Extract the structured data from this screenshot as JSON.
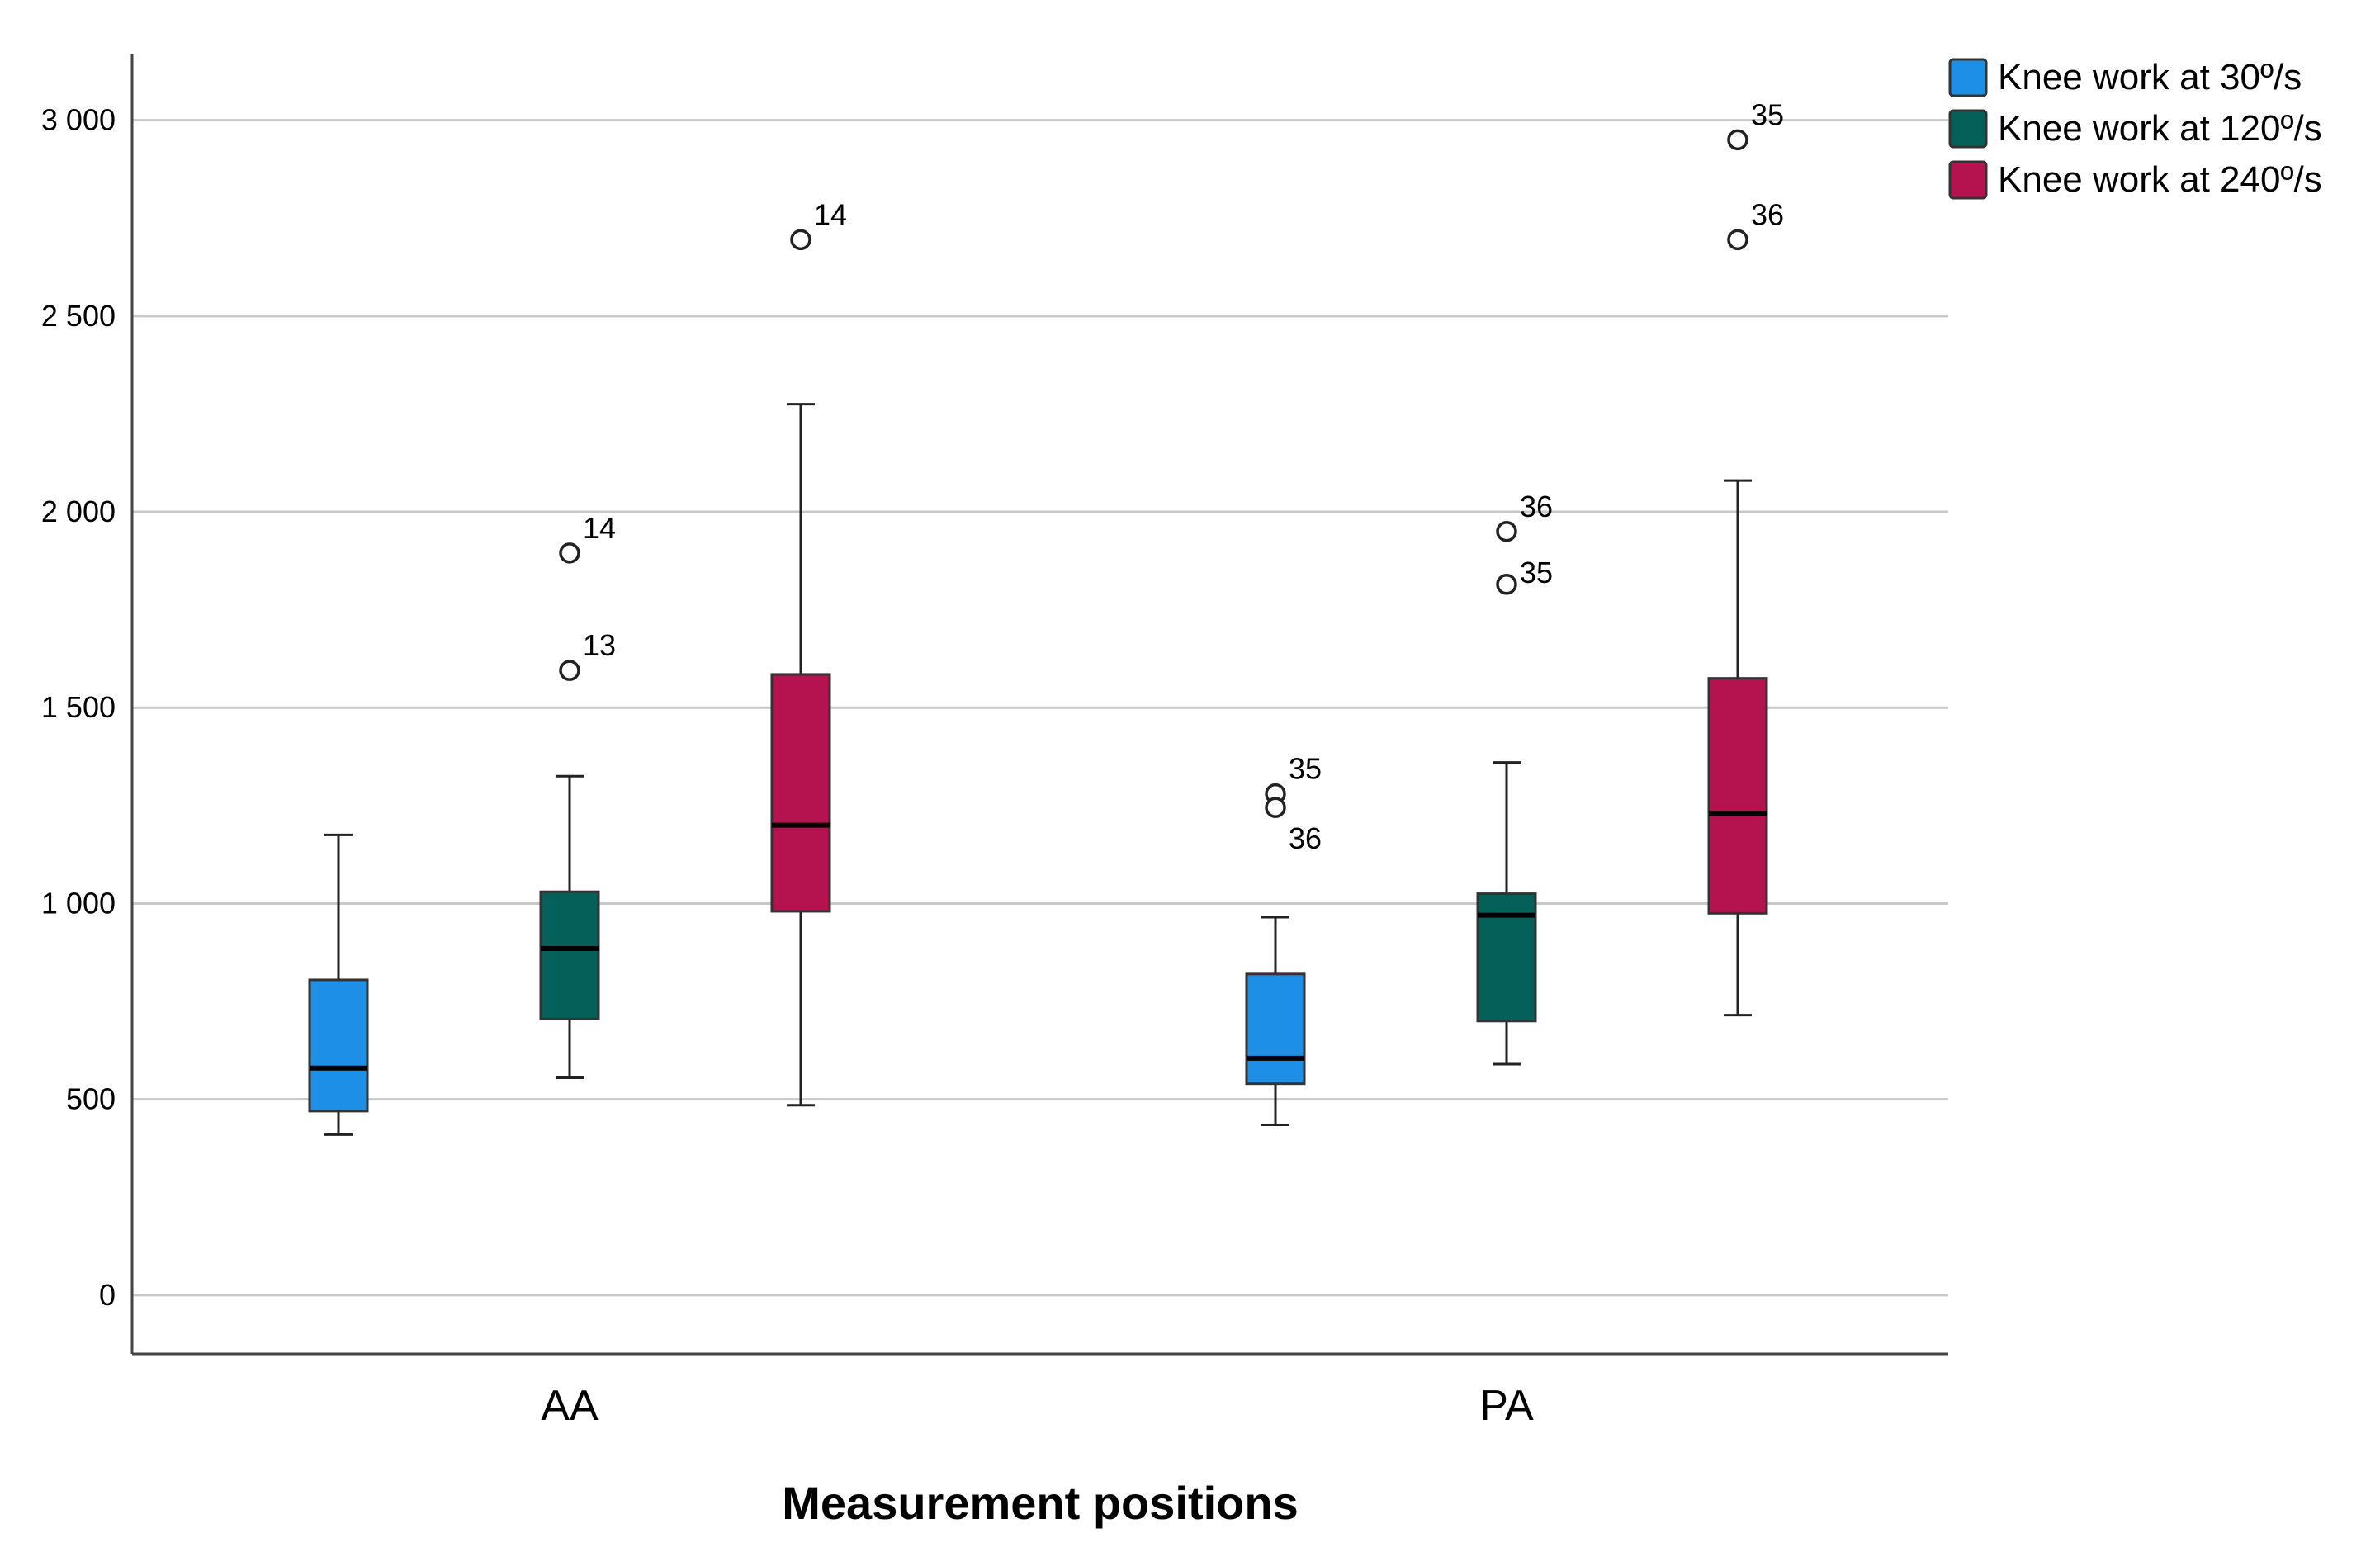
{
  "chart_data": {
    "type": "boxplot",
    "title": "",
    "xlabel": "Measurement positions",
    "ylabel": "",
    "ylim": [
      -150,
      3170
    ],
    "yticks": [
      0,
      500,
      1000,
      1500,
      2000,
      2500,
      3000
    ],
    "ytick_labels": [
      "0",
      "500",
      "1 000",
      "1 500",
      "2 000",
      "2 500",
      "3 000"
    ],
    "grid": true,
    "legend_position": "top-right",
    "categories": [
      "AA",
      "PA"
    ],
    "series": [
      {
        "name": "Knee work at 30º/s",
        "color": "#1E8FE6",
        "boxes": [
          {
            "min": 410,
            "q1": 470,
            "median": 580,
            "q3": 805,
            "max": 1175,
            "outliers": []
          },
          {
            "min": 435,
            "q1": 540,
            "median": 605,
            "q3": 820,
            "max": 965,
            "outliers": [
              {
                "value": 1280,
                "label": "35"
              },
              {
                "value": 1245,
                "label": "36"
              }
            ]
          }
        ]
      },
      {
        "name": "Knee work at 120º/s",
        "color": "#05605A",
        "boxes": [
          {
            "min": 555,
            "q1": 705,
            "median": 885,
            "q3": 1030,
            "max": 1325,
            "outliers": [
              {
                "value": 1895,
                "label": "14"
              },
              {
                "value": 1595,
                "label": "13"
              }
            ]
          },
          {
            "min": 590,
            "q1": 700,
            "median": 970,
            "q3": 1025,
            "max": 1360,
            "outliers": [
              {
                "value": 1950,
                "label": "36"
              },
              {
                "value": 1815,
                "label": "35"
              }
            ]
          }
        ]
      },
      {
        "name": "Knee work at 240º/s",
        "color": "#B5134F",
        "boxes": [
          {
            "min": 485,
            "q1": 980,
            "median": 1200,
            "q3": 1585,
            "max": 2275,
            "outliers": [
              {
                "value": 2695,
                "label": "14"
              }
            ]
          },
          {
            "min": 715,
            "q1": 975,
            "median": 1230,
            "q3": 1575,
            "max": 2080,
            "outliers": [
              {
                "value": 2950,
                "label": "35"
              },
              {
                "value": 2695,
                "label": "36"
              }
            ]
          }
        ]
      }
    ]
  }
}
